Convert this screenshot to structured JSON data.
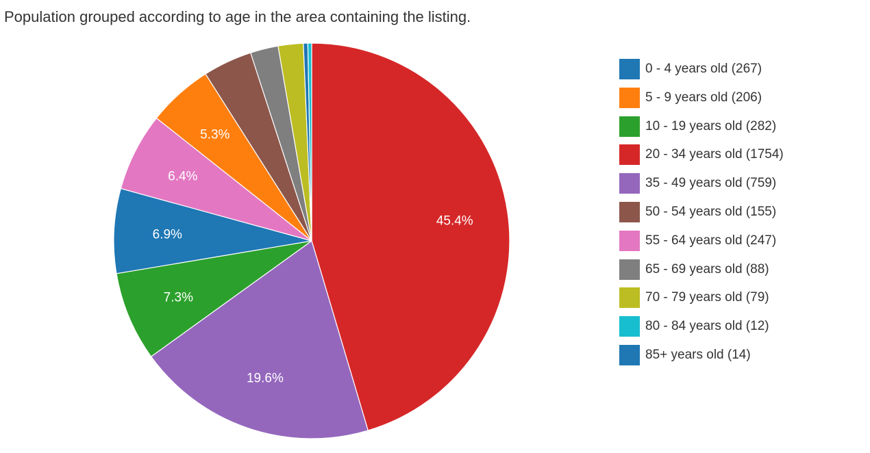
{
  "chart_data": {
    "type": "pie",
    "title": "Population grouped according to age in the area containing the listing.",
    "legend_position": "right",
    "slices": [
      {
        "category": "0 - 4 years old",
        "value": 267,
        "color": "#1f77b4",
        "label": "6.9%",
        "legend": "0 - 4 years old (267)"
      },
      {
        "category": "5 - 9 years old",
        "value": 206,
        "color": "#ff7f0e",
        "label": "5.3%",
        "legend": "5 - 9 years old (206)"
      },
      {
        "category": "10 - 19 years old",
        "value": 282,
        "color": "#2ca02c",
        "label": "7.3%",
        "legend": "10 - 19 years old (282)"
      },
      {
        "category": "20 - 34 years old",
        "value": 1754,
        "color": "#d62728",
        "label": "45.4%",
        "legend": "20 - 34 years old (1754)"
      },
      {
        "category": "35 - 49 years old",
        "value": 759,
        "color": "#9467bd",
        "label": "19.6%",
        "legend": "35 - 49 years old (759)"
      },
      {
        "category": "50 - 54 years old",
        "value": 155,
        "color": "#8c564b",
        "label": "",
        "legend": "50 - 54 years old (155)"
      },
      {
        "category": "55 - 64 years old",
        "value": 247,
        "color": "#e377c2",
        "label": "6.4%",
        "legend": "55 - 64 years old (247)"
      },
      {
        "category": "65 - 69 years old",
        "value": 88,
        "color": "#7f7f7f",
        "label": "",
        "legend": "65 - 69 years old (88)"
      },
      {
        "category": "70 - 79 years old",
        "value": 79,
        "color": "#bcbd22",
        "label": "",
        "legend": "70 - 79 years old (79)"
      },
      {
        "category": "80 - 84 years old",
        "value": 12,
        "color": "#17becf",
        "label": "",
        "legend": "80 - 84 years old (12)"
      },
      {
        "category": "85+ years old",
        "value": 14,
        "color": "#1f77b4",
        "label": "",
        "legend": "85+ years old (14)"
      }
    ],
    "draw_order": [
      3,
      4,
      2,
      0,
      6,
      1,
      5,
      7,
      8,
      10,
      9
    ]
  }
}
